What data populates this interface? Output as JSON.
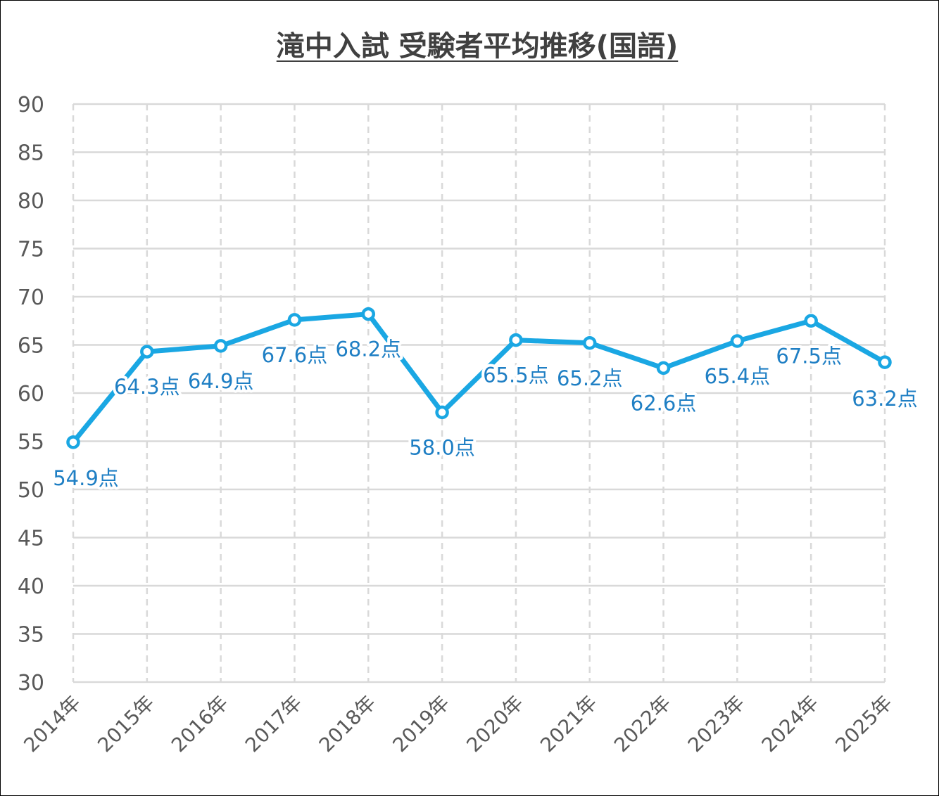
{
  "chart_data": {
    "type": "line",
    "title": "滝中入試 受験者平均推移(国語)",
    "categories": [
      "2014年",
      "2015年",
      "2016年",
      "2017年",
      "2018年",
      "2019年",
      "2020年",
      "2021年",
      "2022年",
      "2023年",
      "2024年",
      "2025年"
    ],
    "series": [
      {
        "values": [
          54.9,
          64.3,
          64.9,
          67.6,
          68.2,
          58.0,
          65.5,
          65.2,
          62.6,
          65.4,
          67.5,
          63.2
        ],
        "labels": [
          "54.9点",
          "64.3点",
          "64.9点",
          "67.6点",
          "68.2点",
          "58.0点",
          "65.5点",
          "65.2点",
          "62.6点",
          "65.4点",
          "67.5点",
          "63.2点"
        ]
      }
    ],
    "yticks": [
      "30",
      "35",
      "40",
      "45",
      "50",
      "55",
      "60",
      "65",
      "70",
      "75",
      "80",
      "85",
      "90"
    ],
    "ylim": [
      30,
      90
    ],
    "xlabel": "",
    "ylabel": "",
    "grid": true,
    "colors": {
      "line": "#1aa7e3",
      "label": "#1f7fc4",
      "grid": "#d9d9d9",
      "axis_text": "#595959",
      "title": "#404040"
    }
  }
}
